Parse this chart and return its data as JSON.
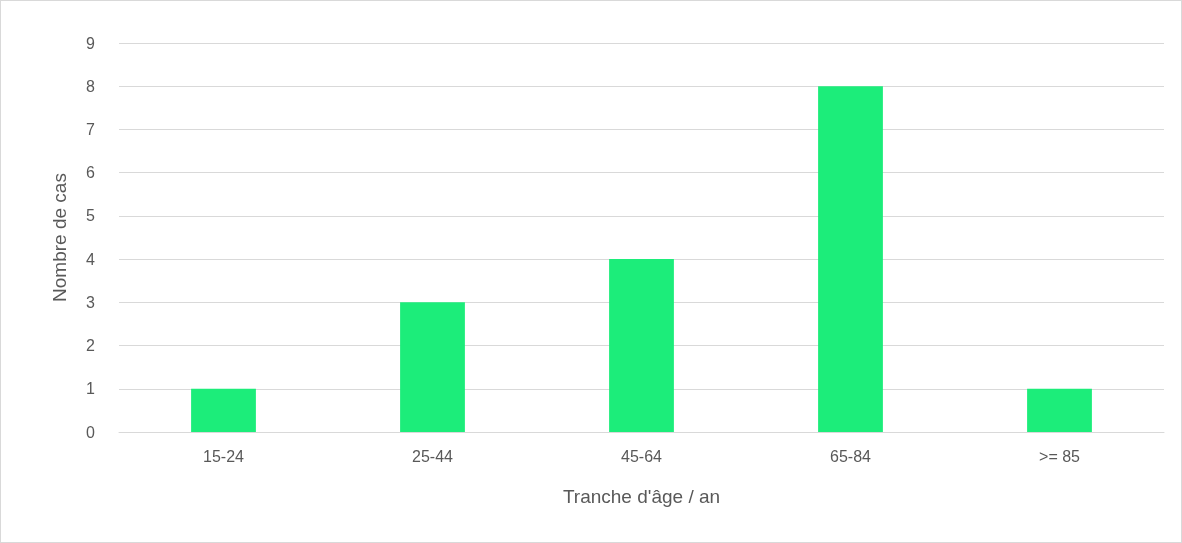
{
  "chart_data": {
    "type": "bar",
    "xlabel": "Tranche d'âge / an",
    "ylabel": "Nombre de cas",
    "categories": [
      "15-24",
      "25-44",
      "45-64",
      "65-84",
      ">= 85"
    ],
    "values": [
      1,
      3,
      4,
      8,
      1
    ],
    "color": "#1ced7a",
    "ylim": [
      0,
      9
    ],
    "yticks": [
      0,
      1,
      2,
      3,
      4,
      5,
      6,
      7,
      8,
      9
    ],
    "grid": "y"
  }
}
